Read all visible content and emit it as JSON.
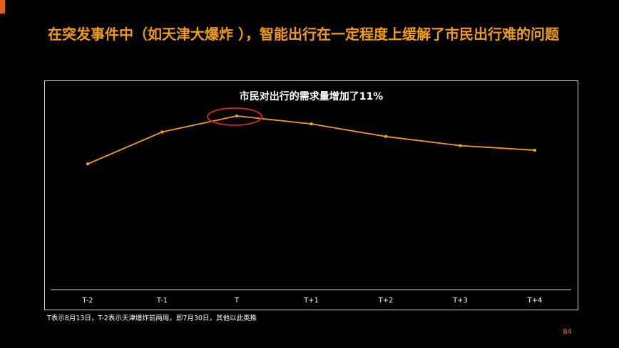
{
  "slide": {
    "title": "在突发事件中（如天津大爆炸 ），智能出行在一定程度上缓解了市民出行难的问题",
    "footnote": "T表示8月13日，T-2表示天津爆炸前两周，即7月30日，其他以此类推",
    "page_number": "84"
  },
  "colors": {
    "background": "#000000",
    "title": "#f39c12",
    "accent": "#e0601c",
    "line": "#f39c12",
    "highlight_circle": "#c0262b",
    "axis": "#d9d9d9"
  },
  "chart_data": {
    "type": "line",
    "title": "市民对出行的需求量增加了11%",
    "categories": [
      "T-2",
      "T-1",
      "T",
      "T+1",
      "T+2",
      "T+3",
      "T+4"
    ],
    "values": [
      100,
      114,
      121,
      117.5,
      112,
      108,
      106
    ],
    "ylim": [
      45,
      130
    ],
    "highlight_category": "T",
    "grid": false,
    "xlabel": "",
    "ylabel": ""
  }
}
